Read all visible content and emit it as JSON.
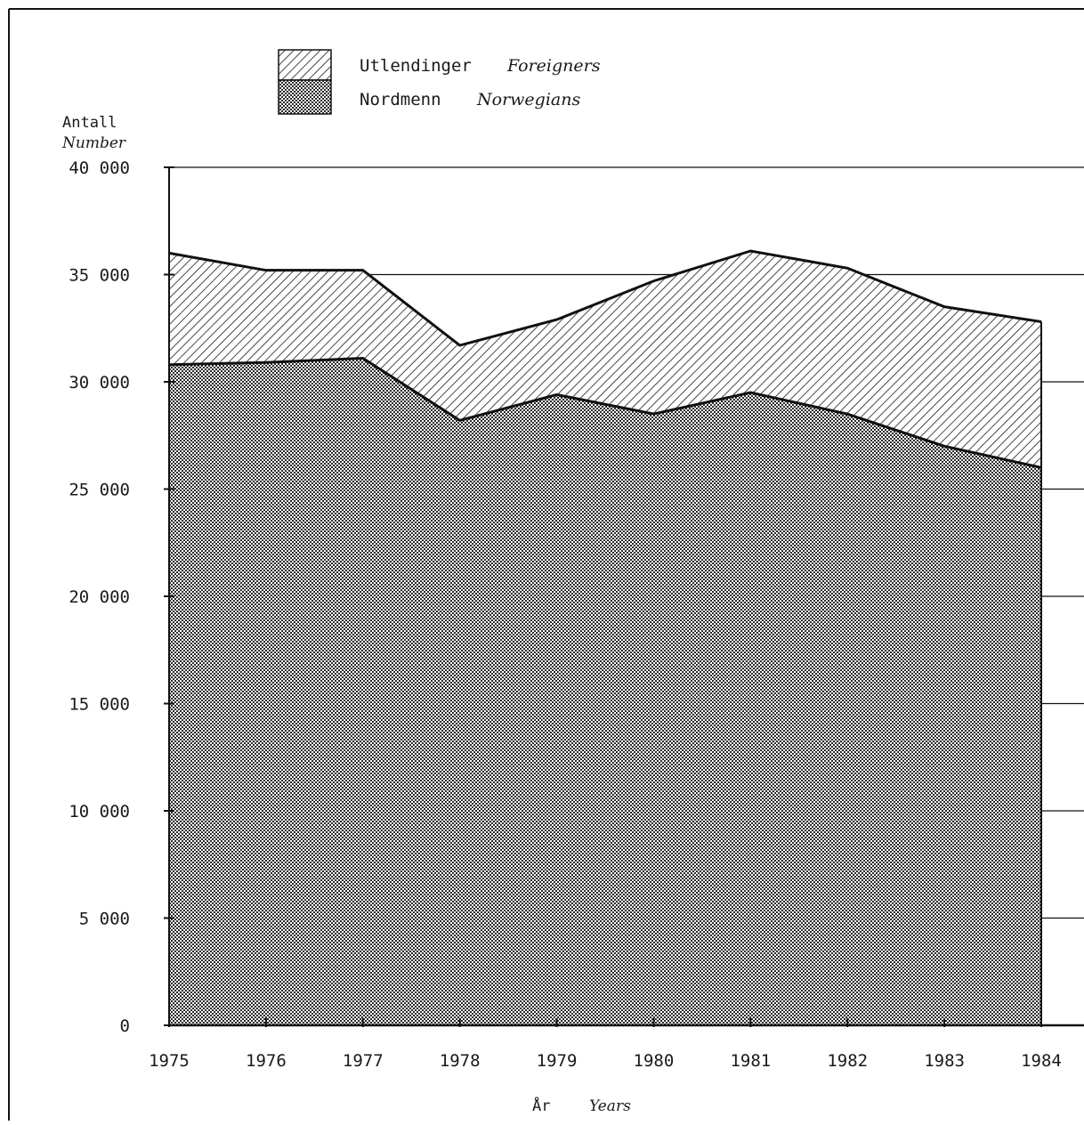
{
  "chart_data": {
    "type": "area",
    "stacked": true,
    "ylabel": "Antall",
    "ylabel_en": "Number",
    "xlabel": "År",
    "xlabel_en": "Years",
    "x": [
      1975,
      1976,
      1977,
      1978,
      1979,
      1980,
      1981,
      1982,
      1983,
      1984
    ],
    "xtick_labels": [
      "1975",
      "1976",
      "1977",
      "1978",
      "1979",
      "1980",
      "1981",
      "1982",
      "1983",
      "1984"
    ],
    "ylim": [
      0,
      40000
    ],
    "yticks": [
      0,
      5000,
      10000,
      15000,
      20000,
      25000,
      30000,
      35000,
      40000
    ],
    "ytick_labels": [
      "0",
      "5 000",
      "10 000",
      "15 000",
      "20 000",
      "25 000",
      "30 000",
      "35 000",
      "40 000"
    ],
    "series": [
      {
        "name": "Nordmenn",
        "name_en": "Norwegians",
        "pattern": "dots",
        "values": [
          30800,
          30900,
          31100,
          28200,
          29400,
          28500,
          29500,
          28500,
          27000,
          26000
        ]
      },
      {
        "name": "Utlendinger",
        "name_en": "Foreigners",
        "pattern": "hatch",
        "values": [
          5200,
          4300,
          4100,
          3500,
          3500,
          6200,
          6600,
          6800,
          6500,
          6800
        ]
      }
    ],
    "legend": [
      {
        "label": "Utlendinger",
        "label_en": "Foreigners",
        "pattern": "hatch"
      },
      {
        "label": "Nordmenn",
        "label_en": "Norwegians",
        "pattern": "dots"
      }
    ],
    "legend_position": "top-left",
    "grid": "horizontal lines to the right of the plot"
  }
}
